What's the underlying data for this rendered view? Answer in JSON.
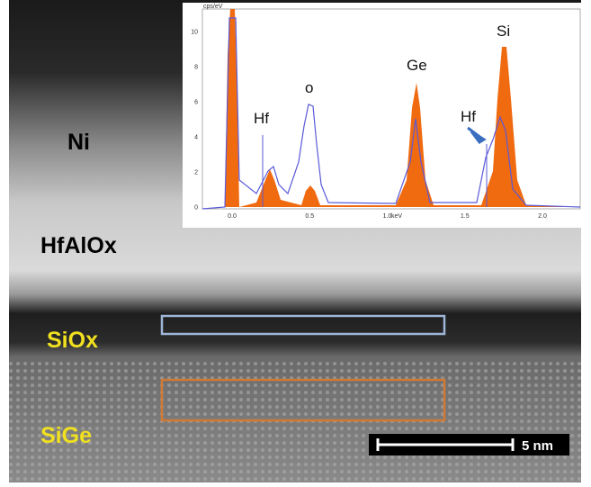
{
  "micrograph": {
    "layers": [
      "Ni",
      "HfAlOx",
      "SiOx",
      "SiGe"
    ],
    "scale_bar": "5 nm"
  },
  "inset": {
    "y_axis_label": "cps/eV",
    "yticks": [
      "0",
      "2",
      "4",
      "6",
      "8",
      "10"
    ],
    "x_axis_label": "keV",
    "xticks": [
      "0.0",
      "0.5",
      "1.0",
      "1.5",
      "2.0"
    ],
    "peak_labels": [
      "Hf",
      "o",
      "Ge",
      "Hf",
      "Si"
    ]
  }
}
